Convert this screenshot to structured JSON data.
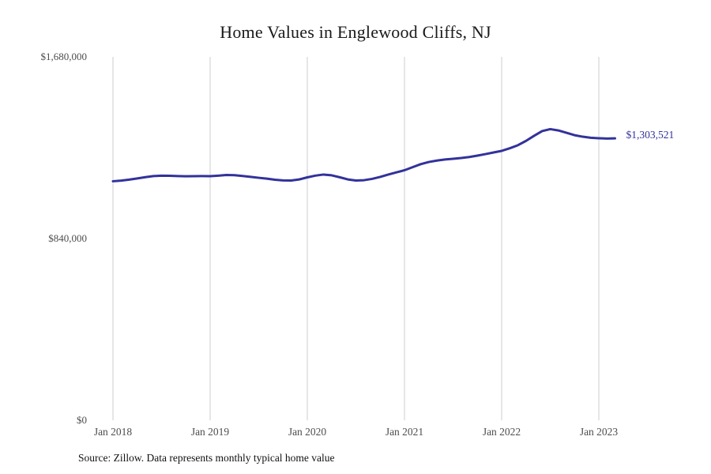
{
  "title": "Home Values in Englewood Cliffs, NJ",
  "source_note": "Source: Zillow. Data represents monthly typical home value",
  "end_label": "$1,303,521",
  "colors": {
    "line": "#32329b",
    "grid": "#cccccc",
    "tick_text": "#4d4d4d",
    "title_text": "#1a1a1a",
    "end_label_text": "#32329b",
    "source_text": "#111111",
    "background": "#ffffff"
  },
  "chart_data": {
    "type": "line",
    "title": "Home Values in Englewood Cliffs, NJ",
    "source": "Source: Zillow. Data represents monthly typical home value",
    "grid": "vertical-only",
    "legend": "none",
    "ylim": [
      0,
      1680000
    ],
    "y_ticks": [
      {
        "value": 1680000,
        "label": "$1,680,000"
      },
      {
        "value": 840000,
        "label": "$840,000"
      },
      {
        "value": 0,
        "label": "$0"
      }
    ],
    "x_ticks": [
      {
        "index": 0,
        "label": "Jan 2018"
      },
      {
        "index": 12,
        "label": "Jan 2019"
      },
      {
        "index": 24,
        "label": "Jan 2020"
      },
      {
        "index": 36,
        "label": "Jan 2021"
      },
      {
        "index": 48,
        "label": "Jan 2022"
      },
      {
        "index": 60,
        "label": "Jan 2023"
      }
    ],
    "annotation": {
      "text": "$1,303,521",
      "at": "last-point"
    },
    "x": [
      "2018-01",
      "2018-02",
      "2018-03",
      "2018-04",
      "2018-05",
      "2018-06",
      "2018-07",
      "2018-08",
      "2018-09",
      "2018-10",
      "2018-11",
      "2018-12",
      "2019-01",
      "2019-02",
      "2019-03",
      "2019-04",
      "2019-05",
      "2019-06",
      "2019-07",
      "2019-08",
      "2019-09",
      "2019-10",
      "2019-11",
      "2019-12",
      "2020-01",
      "2020-02",
      "2020-03",
      "2020-04",
      "2020-05",
      "2020-06",
      "2020-07",
      "2020-08",
      "2020-09",
      "2020-10",
      "2020-11",
      "2020-12",
      "2021-01",
      "2021-02",
      "2021-03",
      "2021-04",
      "2021-05",
      "2021-06",
      "2021-07",
      "2021-08",
      "2021-09",
      "2021-10",
      "2021-11",
      "2021-12",
      "2022-01",
      "2022-02",
      "2022-03",
      "2022-04",
      "2022-05",
      "2022-06",
      "2022-07",
      "2022-08",
      "2022-09",
      "2022-10",
      "2022-11",
      "2022-12",
      "2023-01",
      "2023-02",
      "2023-03"
    ],
    "values": [
      1105000,
      1108000,
      1112500,
      1118000,
      1124000,
      1129000,
      1131000,
      1130500,
      1129000,
      1128000,
      1128500,
      1129000,
      1128500,
      1131000,
      1134000,
      1133000,
      1129500,
      1125500,
      1121000,
      1117000,
      1112000,
      1109000,
      1108500,
      1113500,
      1123000,
      1131000,
      1136000,
      1132500,
      1123500,
      1113500,
      1108500,
      1110000,
      1116000,
      1125000,
      1136000,
      1146000,
      1156000,
      1170000,
      1184000,
      1194000,
      1200500,
      1205500,
      1209000,
      1212500,
      1217000,
      1223500,
      1230500,
      1238000,
      1245500,
      1257500,
      1271500,
      1291500,
      1315000,
      1337000,
      1346000,
      1340000,
      1329000,
      1318000,
      1311000,
      1306000,
      1304000,
      1302500,
      1303521
    ]
  }
}
